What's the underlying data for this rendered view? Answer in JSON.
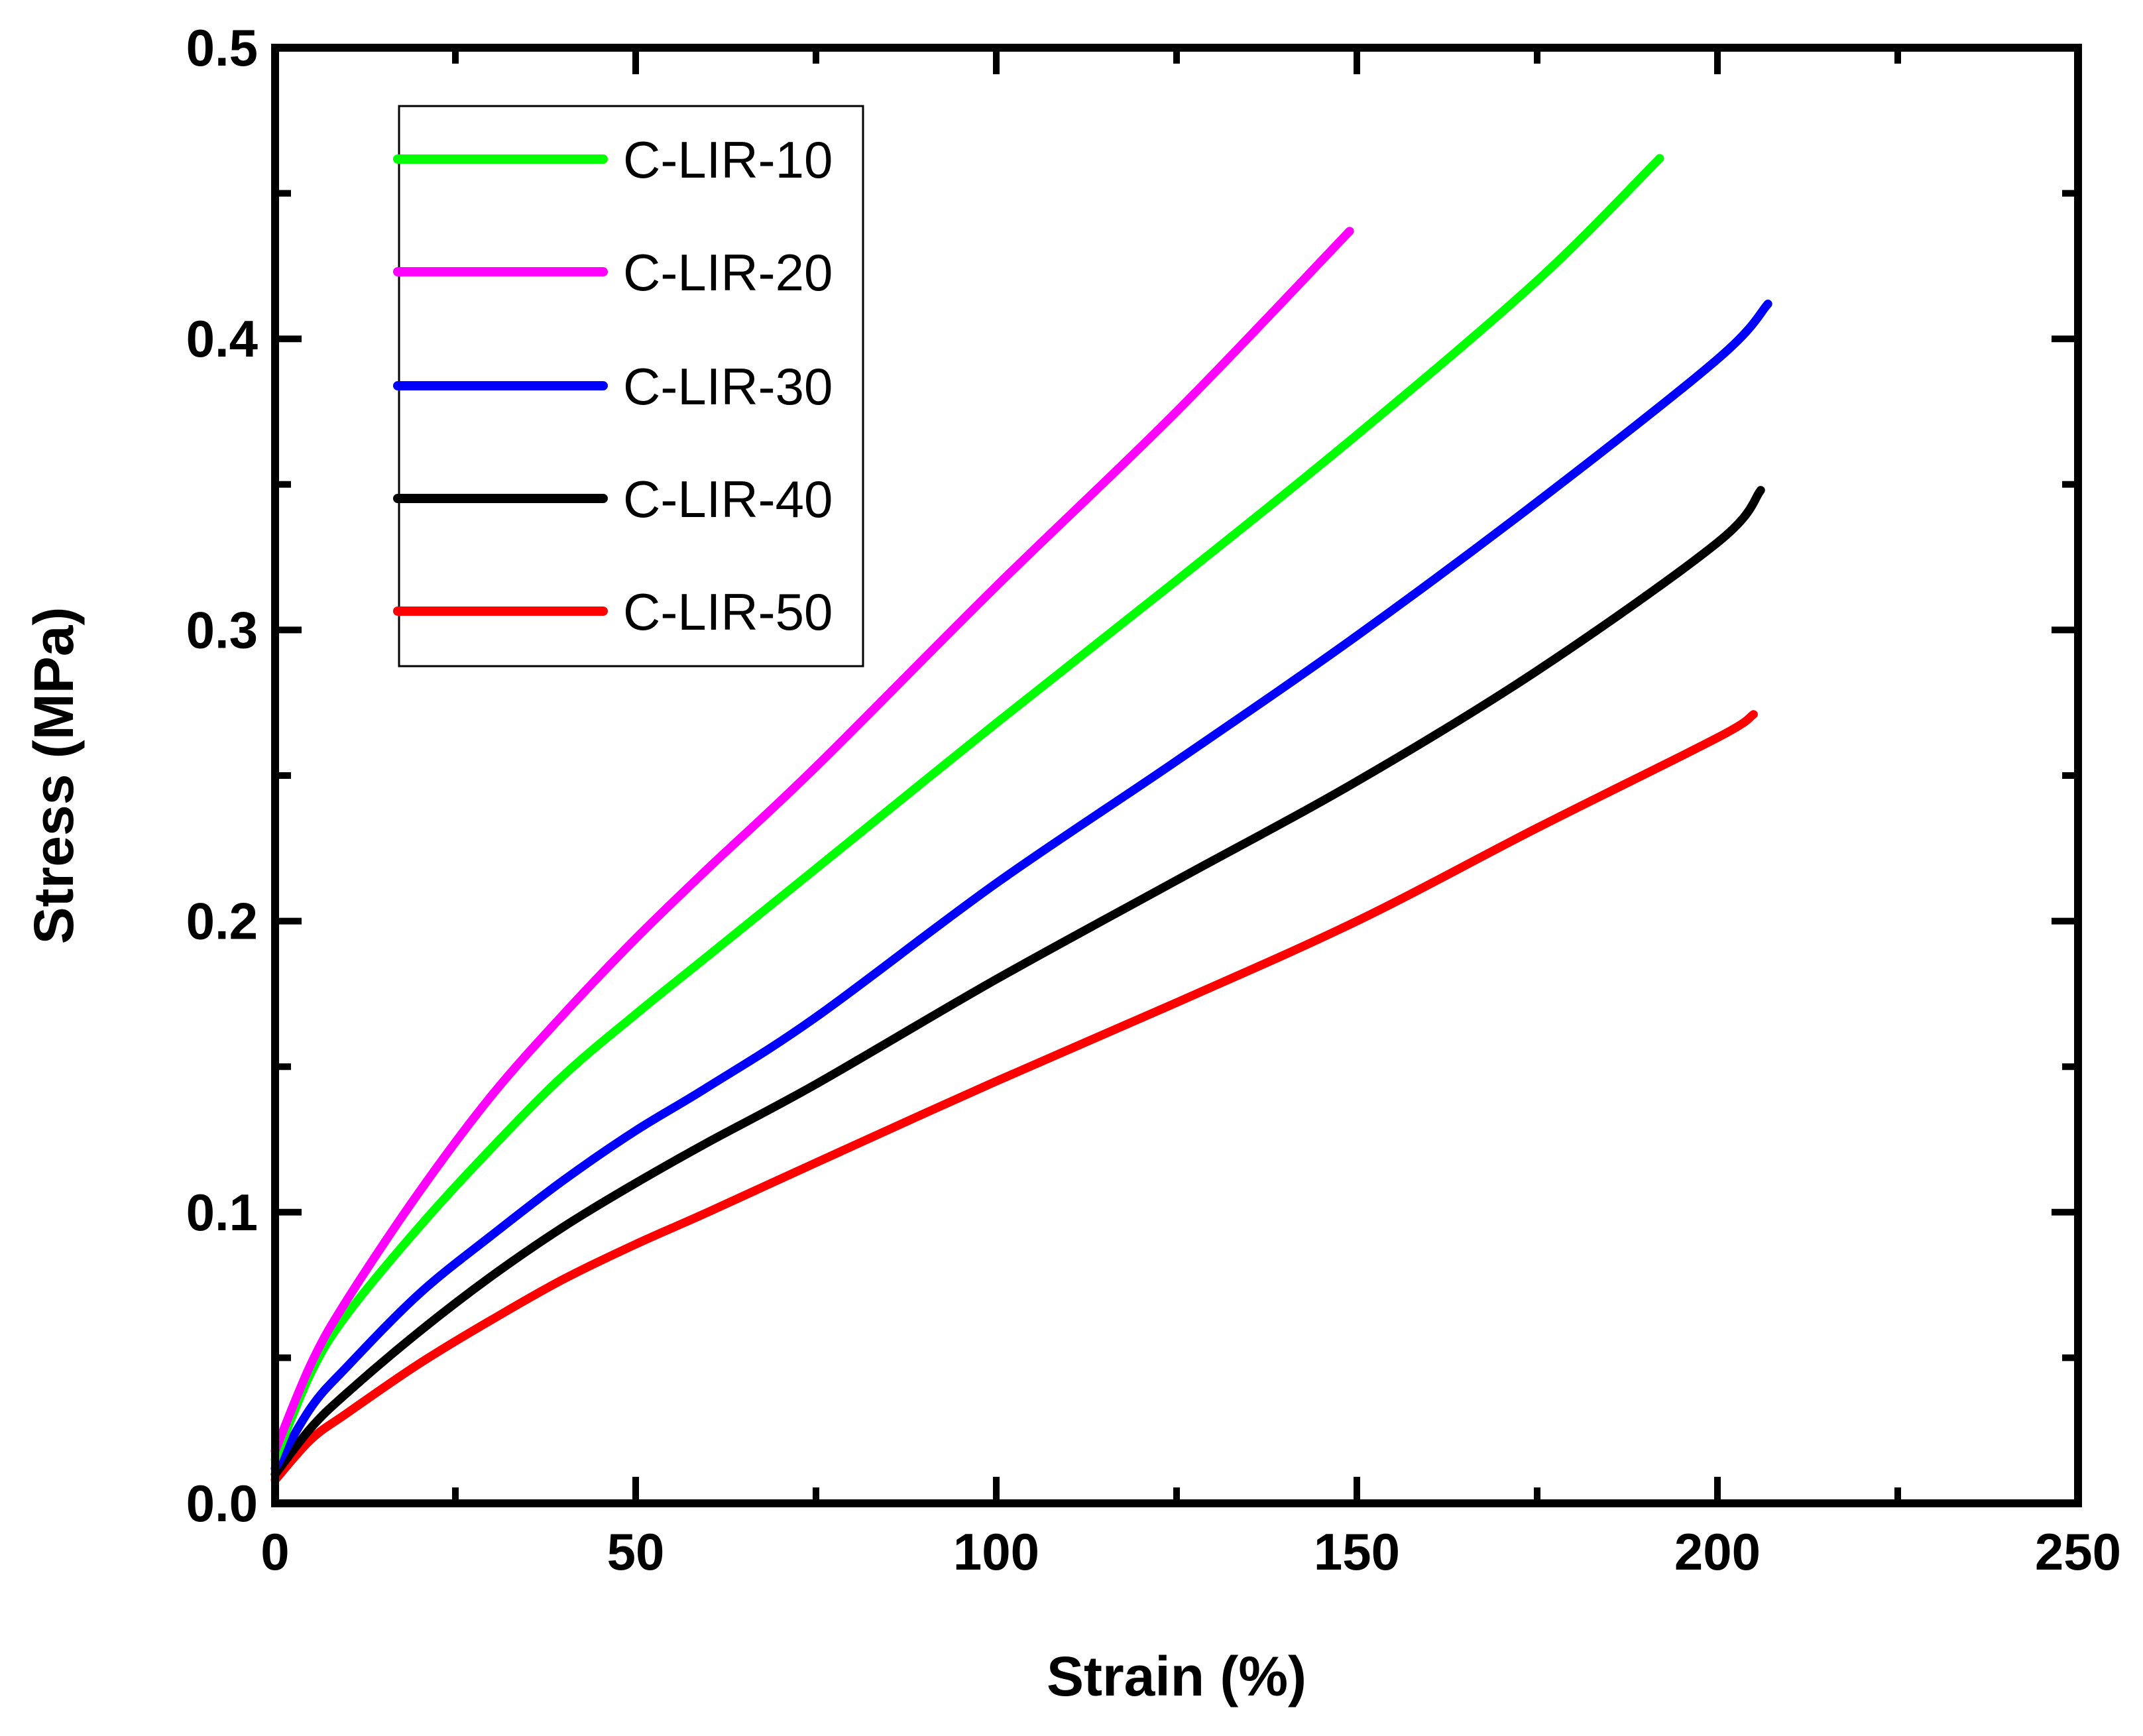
{
  "chart_data": {
    "type": "line",
    "title": "",
    "xlabel": "Strain (%)",
    "ylabel": "Stress (MPa)",
    "xlim": [
      0,
      250
    ],
    "ylim": [
      0,
      0.5
    ],
    "xticks": [
      0,
      50,
      100,
      150,
      200,
      250
    ],
    "xtick_labels": [
      "0",
      "50",
      "100",
      "150",
      "200",
      "250"
    ],
    "yticks": [
      0,
      0.1,
      0.2,
      0.3,
      0.4,
      0.5
    ],
    "ytick_labels": [
      "0.0",
      "0.1",
      "0.2",
      "0.3",
      "0.4",
      "0.5"
    ],
    "grid": false,
    "legend_position": "top-left",
    "series": [
      {
        "name": "C-LIR-10",
        "color": "#00ff00",
        "x": [
          0,
          5,
          10,
          20,
          30,
          40,
          50,
          60,
          75,
          100,
          125,
          150,
          175,
          192
        ],
        "y": [
          0.015,
          0.045,
          0.065,
          0.095,
          0.122,
          0.147,
          0.168,
          0.188,
          0.218,
          0.268,
          0.317,
          0.367,
          0.42,
          0.462
        ]
      },
      {
        "name": "C-LIR-20",
        "color": "#ff00ff",
        "x": [
          0,
          5,
          10,
          20,
          30,
          40,
          50,
          60,
          75,
          100,
          125,
          149
        ],
        "y": [
          0.018,
          0.048,
          0.07,
          0.107,
          0.14,
          0.168,
          0.194,
          0.218,
          0.253,
          0.315,
          0.375,
          0.437
        ]
      },
      {
        "name": "C-LIR-30",
        "color": "#0000ff",
        "x": [
          0,
          5,
          10,
          20,
          30,
          40,
          50,
          60,
          75,
          100,
          125,
          150,
          175,
          200,
          207
        ],
        "y": [
          0.012,
          0.033,
          0.047,
          0.072,
          0.092,
          0.111,
          0.128,
          0.143,
          0.167,
          0.213,
          0.255,
          0.298,
          0.344,
          0.393,
          0.412
        ]
      },
      {
        "name": "C-LIR-40",
        "color": "#000000",
        "x": [
          0,
          5,
          10,
          20,
          30,
          40,
          50,
          60,
          75,
          100,
          125,
          150,
          175,
          200,
          206
        ],
        "y": [
          0.01,
          0.026,
          0.038,
          0.059,
          0.078,
          0.095,
          0.11,
          0.124,
          0.144,
          0.18,
          0.214,
          0.248,
          0.286,
          0.33,
          0.348
        ]
      },
      {
        "name": "C-LIR-50",
        "color": "#ff0000",
        "x": [
          0,
          5,
          10,
          20,
          30,
          40,
          50,
          60,
          75,
          100,
          125,
          150,
          175,
          200,
          205
        ],
        "y": [
          0.008,
          0.022,
          0.031,
          0.048,
          0.063,
          0.077,
          0.089,
          0.1,
          0.117,
          0.145,
          0.172,
          0.2,
          0.232,
          0.263,
          0.271
        ]
      }
    ]
  }
}
